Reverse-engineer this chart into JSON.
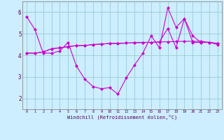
{
  "xlabel": "Windchill (Refroidissement éolien,°C)",
  "background_color": "#cceeff",
  "grid_color": "#99cccc",
  "line_color": "#cc00cc",
  "x_hourly": [
    0,
    1,
    2,
    3,
    4,
    5,
    6,
    7,
    8,
    9,
    10,
    11,
    12,
    13,
    14,
    15,
    16,
    17,
    18,
    19,
    20,
    21,
    22,
    23
  ],
  "series1": [
    5.8,
    5.2,
    4.1,
    4.1,
    4.2,
    4.6,
    3.5,
    2.9,
    2.55,
    2.45,
    2.5,
    2.2,
    2.95,
    3.55,
    4.1,
    4.9,
    4.35,
    6.2,
    5.3,
    5.7,
    4.9,
    4.6,
    4.6,
    4.5
  ],
  "series2": [
    4.1,
    4.1,
    4.15,
    4.3,
    4.35,
    4.4,
    4.45,
    4.45,
    4.5,
    4.52,
    4.55,
    4.55,
    4.57,
    4.58,
    4.6,
    4.6,
    4.62,
    4.63,
    4.64,
    4.65,
    4.65,
    4.65,
    4.6,
    4.55
  ],
  "series3": [
    4.1,
    4.1,
    4.15,
    4.3,
    4.35,
    4.4,
    4.45,
    4.45,
    4.5,
    4.52,
    4.55,
    4.55,
    4.57,
    4.58,
    4.6,
    4.6,
    4.62,
    5.25,
    4.35,
    5.7,
    4.6,
    4.6,
    4.6,
    4.55
  ],
  "ylim": [
    1.5,
    6.5
  ],
  "xlim": [
    -0.5,
    23.5
  ],
  "yticks": [
    2,
    3,
    4,
    5,
    6
  ],
  "xticks": [
    0,
    1,
    2,
    3,
    4,
    5,
    6,
    7,
    8,
    9,
    10,
    11,
    12,
    13,
    14,
    15,
    16,
    17,
    18,
    19,
    20,
    21,
    22,
    23
  ]
}
